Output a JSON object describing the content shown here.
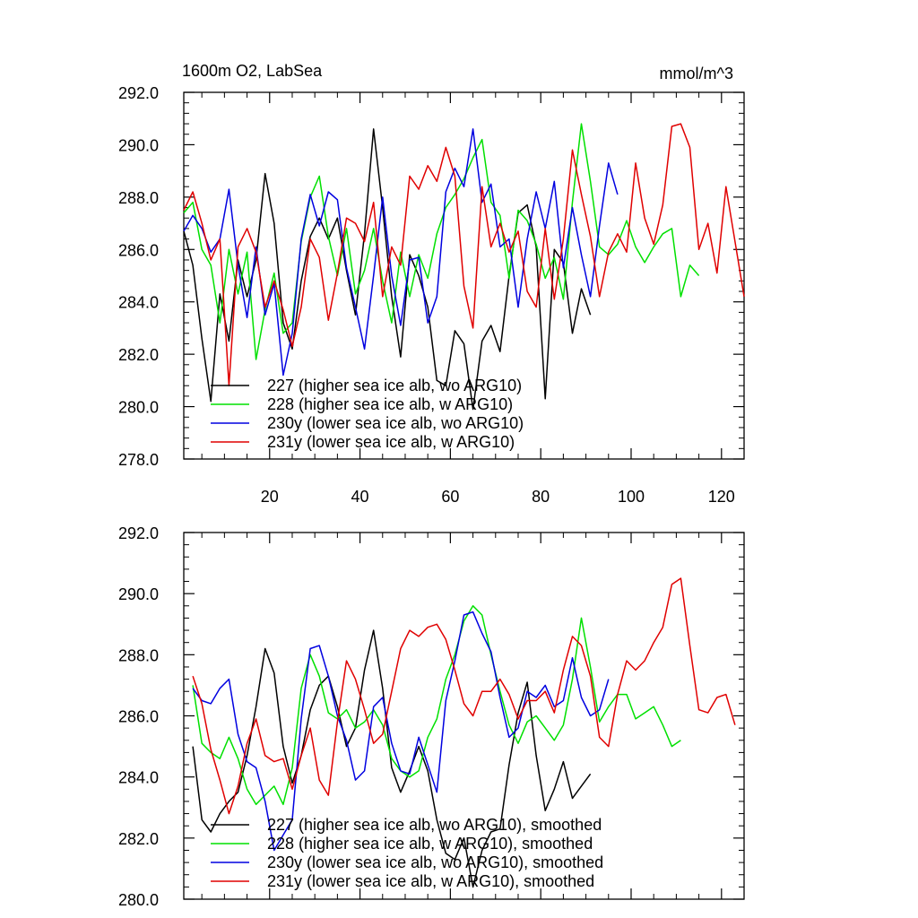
{
  "figure": {
    "title_left": "1600m O2, LabSea",
    "title_right": "mmol/m^3"
  },
  "chart_data": [
    {
      "type": "line",
      "title": "1600m O2, LabSea",
      "units": "mmol/m^3",
      "xlim": [
        1,
        125
      ],
      "ylim": [
        278,
        292
      ],
      "xticks": [
        20,
        40,
        60,
        80,
        100,
        120
      ],
      "yticks": [
        278,
        280,
        282,
        284,
        286,
        288,
        290,
        292
      ],
      "ytick_labels": [
        "278.0",
        "280.0",
        "282.0",
        "284.0",
        "286.0",
        "288.0",
        "290.0",
        "292.0"
      ],
      "xtick_labels": [
        "20",
        "40",
        "60",
        "80",
        "100",
        "120"
      ],
      "legend_position": "bottom-left",
      "series": [
        {
          "name": "227 (higher sea ice alb, wo ARG10)",
          "color": "#000000",
          "x": [
            1,
            3,
            5,
            7,
            9,
            11,
            13,
            15,
            17,
            19,
            21,
            23,
            25,
            27,
            29,
            31,
            33,
            35,
            37,
            39,
            41,
            43,
            45,
            47,
            49,
            51,
            53,
            55,
            57,
            59,
            61,
            63,
            65,
            67,
            69,
            71,
            73,
            75,
            77,
            79,
            81,
            83,
            85,
            87,
            89,
            91
          ],
          "y": [
            286.7,
            285.4,
            282.6,
            280.2,
            284.3,
            282.5,
            285.6,
            284.2,
            285.6,
            288.9,
            287.0,
            283.2,
            282.2,
            284.8,
            286.5,
            287.2,
            286.4,
            287.2,
            285.2,
            283.5,
            286.6,
            290.6,
            287.6,
            284.2,
            281.9,
            285.8,
            285.0,
            283.8,
            281.0,
            280.8,
            282.9,
            282.4,
            279.9,
            282.5,
            283.1,
            282.1,
            285.0,
            287.4,
            287.7,
            286.1,
            280.3,
            286.0,
            285.5,
            282.8,
            284.5,
            283.5
          ]
        },
        {
          "name": "228 (higher sea ice alb, w ARG10)",
          "color": "#00e000",
          "x": [
            1,
            3,
            5,
            7,
            9,
            11,
            13,
            15,
            17,
            19,
            21,
            23,
            25,
            27,
            29,
            31,
            33,
            35,
            37,
            39,
            41,
            43,
            45,
            47,
            49,
            51,
            53,
            55,
            57,
            59,
            61,
            63,
            65,
            67,
            69,
            71,
            73,
            75,
            77,
            79,
            81,
            83,
            85,
            87,
            89,
            91,
            93,
            95,
            97,
            99,
            101,
            103,
            105,
            107,
            109,
            111,
            113,
            115
          ],
          "y": [
            287.4,
            287.8,
            286.0,
            285.4,
            283.2,
            286.0,
            284.3,
            285.9,
            281.8,
            283.7,
            285.1,
            282.8,
            283.2,
            286.3,
            288.0,
            288.8,
            286.5,
            285.0,
            286.8,
            284.3,
            285.2,
            286.8,
            284.8,
            283.2,
            285.9,
            284.2,
            285.8,
            284.9,
            286.6,
            287.6,
            288.1,
            288.7,
            289.5,
            290.2,
            287.8,
            287.3,
            284.9,
            287.5,
            287.1,
            286.2,
            284.9,
            285.7,
            284.1,
            287.8,
            290.8,
            288.6,
            286.1,
            285.8,
            286.2,
            287.1,
            286.1,
            285.5,
            286.1,
            286.6,
            286.8,
            284.2,
            285.4,
            285.0
          ]
        },
        {
          "name": "230y (lower sea ice alb, wo ARG10)",
          "color": "#0000e0",
          "x": [
            1,
            3,
            5,
            7,
            9,
            11,
            13,
            15,
            17,
            19,
            21,
            23,
            25,
            27,
            29,
            31,
            33,
            35,
            37,
            39,
            41,
            43,
            45,
            47,
            49,
            51,
            53,
            55,
            57,
            59,
            61,
            63,
            65,
            67,
            69,
            71,
            73,
            75,
            77,
            79,
            81,
            83,
            85,
            87,
            89,
            91,
            93,
            95,
            97
          ],
          "y": [
            286.7,
            287.3,
            286.8,
            285.9,
            286.4,
            288.3,
            285.4,
            283.4,
            286.1,
            283.5,
            284.7,
            281.2,
            282.8,
            286.4,
            288.1,
            286.9,
            288.2,
            287.9,
            285.3,
            283.8,
            282.2,
            285.0,
            288.0,
            285.0,
            283.1,
            285.6,
            285.7,
            283.2,
            284.2,
            288.2,
            289.1,
            288.4,
            290.6,
            287.8,
            288.5,
            286.1,
            286.4,
            283.8,
            286.4,
            288.2,
            286.8,
            288.6,
            285.3,
            287.6,
            285.8,
            284.2,
            286.9,
            289.3,
            288.1
          ]
        },
        {
          "name": "231y (lower sea ice alb, w ARG10)",
          "color": "#e00000",
          "x": [
            1,
            3,
            5,
            7,
            9,
            11,
            13,
            15,
            17,
            19,
            21,
            23,
            25,
            27,
            29,
            31,
            33,
            35,
            37,
            39,
            41,
            43,
            45,
            47,
            49,
            51,
            53,
            55,
            57,
            59,
            61,
            63,
            65,
            67,
            69,
            71,
            73,
            75,
            77,
            79,
            81,
            83,
            85,
            87,
            89,
            91,
            93,
            95,
            97,
            99,
            101,
            103,
            105,
            107,
            109,
            111,
            113,
            115,
            117,
            119,
            121,
            123,
            125
          ],
          "y": [
            287.5,
            288.2,
            287.0,
            285.6,
            286.4,
            280.8,
            286.1,
            286.8,
            285.9,
            283.8,
            284.8,
            283.7,
            282.3,
            283.8,
            286.4,
            285.7,
            283.3,
            285.1,
            287.2,
            287.0,
            286.3,
            287.8,
            284.2,
            286.1,
            285.4,
            288.8,
            288.3,
            289.2,
            288.6,
            289.9,
            288.8,
            284.6,
            283.0,
            288.4,
            286.1,
            287.0,
            285.9,
            286.7,
            284.4,
            283.8,
            286.8,
            284.1,
            286.4,
            289.8,
            288.1,
            286.5,
            284.2,
            285.9,
            286.6,
            285.9,
            289.3,
            287.2,
            286.2,
            287.7,
            290.7,
            290.8,
            289.9,
            286.0,
            287.0,
            285.1,
            288.4,
            286.3,
            284.2
          ]
        }
      ]
    },
    {
      "type": "line",
      "title": "",
      "xlim": [
        1,
        125
      ],
      "ylim": [
        280,
        292
      ],
      "xticks": [
        20,
        40,
        60,
        80,
        100,
        120
      ],
      "yticks": [
        280,
        282,
        284,
        286,
        288,
        290,
        292
      ],
      "ytick_labels": [
        "280.0",
        "282.0",
        "284.0",
        "286.0",
        "288.0",
        "290.0",
        "292.0"
      ],
      "legend_position": "bottom-left",
      "series": [
        {
          "name": "227 (higher sea ice alb, wo ARG10), smoothed",
          "color": "#000000",
          "x": [
            3,
            5,
            7,
            9,
            11,
            13,
            15,
            17,
            19,
            21,
            23,
            25,
            27,
            29,
            31,
            33,
            35,
            37,
            39,
            41,
            43,
            45,
            47,
            49,
            51,
            53,
            55,
            57,
            59,
            61,
            63,
            65,
            67,
            69,
            71,
            73,
            75,
            77,
            79,
            81,
            83,
            85,
            87,
            89,
            91
          ],
          "y": [
            285.0,
            282.6,
            282.2,
            282.8,
            283.2,
            283.5,
            284.7,
            286.3,
            288.2,
            287.4,
            285.0,
            283.8,
            284.7,
            286.2,
            287.0,
            287.3,
            286.3,
            285.0,
            285.6,
            287.5,
            288.8,
            286.9,
            284.3,
            283.5,
            284.2,
            285.0,
            284.2,
            282.6,
            281.5,
            281.3,
            282.0,
            280.4,
            281.6,
            282.2,
            282.3,
            284.4,
            286.1,
            287.1,
            284.7,
            282.9,
            283.6,
            284.5,
            283.3,
            283.7,
            284.1
          ]
        },
        {
          "name": "228 (higher sea ice alb, w ARG10), smoothed",
          "color": "#00e000",
          "x": [
            3,
            5,
            7,
            9,
            11,
            13,
            15,
            17,
            19,
            21,
            23,
            25,
            27,
            29,
            31,
            33,
            35,
            37,
            39,
            41,
            43,
            45,
            47,
            49,
            51,
            53,
            55,
            57,
            59,
            61,
            63,
            65,
            67,
            69,
            71,
            73,
            75,
            77,
            79,
            81,
            83,
            85,
            87,
            89,
            91,
            93,
            95,
            97,
            99,
            101,
            103,
            105,
            107,
            109,
            111
          ],
          "y": [
            287.0,
            285.1,
            284.8,
            284.6,
            285.3,
            284.6,
            283.6,
            283.1,
            283.4,
            283.7,
            283.1,
            284.3,
            286.9,
            288.0,
            287.3,
            286.1,
            285.9,
            286.2,
            285.6,
            285.8,
            286.2,
            285.7,
            284.6,
            284.2,
            284.0,
            284.2,
            285.3,
            285.9,
            287.2,
            288.0,
            289.1,
            289.6,
            289.3,
            288.0,
            286.8,
            285.7,
            285.1,
            285.8,
            286.0,
            285.6,
            285.2,
            285.7,
            287.2,
            289.2,
            287.6,
            285.8,
            286.3,
            286.7,
            286.7,
            285.9,
            286.1,
            286.3,
            285.7,
            285.0,
            285.2
          ]
        },
        {
          "name": "230y (lower sea ice alb, wo ARG10), smoothed",
          "color": "#0000e0",
          "x": [
            3,
            5,
            7,
            9,
            11,
            13,
            15,
            17,
            19,
            21,
            23,
            25,
            27,
            29,
            31,
            33,
            35,
            37,
            39,
            41,
            43,
            45,
            47,
            49,
            51,
            53,
            55,
            57,
            59,
            61,
            63,
            65,
            67,
            69,
            71,
            73,
            75,
            77,
            79,
            81,
            83,
            85,
            87,
            89,
            91,
            93,
            95
          ],
          "y": [
            286.9,
            286.5,
            286.4,
            286.9,
            287.2,
            285.4,
            284.5,
            284.3,
            283.2,
            281.6,
            282.1,
            282.6,
            285.9,
            288.2,
            288.3,
            287.3,
            286.0,
            285.2,
            283.9,
            284.2,
            286.3,
            286.6,
            285.1,
            284.2,
            284.1,
            285.3,
            284.4,
            283.5,
            286.5,
            287.8,
            289.3,
            289.4,
            288.7,
            288.1,
            286.6,
            285.3,
            285.6,
            286.8,
            286.6,
            287.0,
            286.3,
            286.5,
            287.9,
            286.6,
            286.0,
            286.2,
            287.2
          ]
        },
        {
          "name": "231y (lower sea ice alb, w ARG10), smoothed",
          "color": "#e00000",
          "x": [
            3,
            5,
            7,
            9,
            11,
            13,
            15,
            17,
            19,
            21,
            23,
            25,
            27,
            29,
            31,
            33,
            35,
            37,
            39,
            41,
            43,
            45,
            47,
            49,
            51,
            53,
            55,
            57,
            59,
            61,
            63,
            65,
            67,
            69,
            71,
            73,
            75,
            77,
            79,
            81,
            83,
            85,
            87,
            89,
            91,
            93,
            95,
            97,
            99,
            101,
            103,
            105,
            107,
            109,
            111,
            113,
            115,
            117,
            119,
            121,
            123
          ],
          "y": [
            287.3,
            286.4,
            284.9,
            283.9,
            282.8,
            283.7,
            285.1,
            285.9,
            284.7,
            284.5,
            284.6,
            283.6,
            284.7,
            285.6,
            283.9,
            283.4,
            285.8,
            287.8,
            287.2,
            286.2,
            285.1,
            285.4,
            286.8,
            288.2,
            288.8,
            288.6,
            288.9,
            289.0,
            288.5,
            287.5,
            286.4,
            286.0,
            286.8,
            286.8,
            287.2,
            286.7,
            285.9,
            286.5,
            286.5,
            286.8,
            286.1,
            287.5,
            288.6,
            288.3,
            287.3,
            285.3,
            285.0,
            286.7,
            287.8,
            287.5,
            287.8,
            288.4,
            288.9,
            290.3,
            290.5,
            288.3,
            286.2,
            286.1,
            286.6,
            286.7,
            285.7
          ]
        }
      ]
    }
  ]
}
